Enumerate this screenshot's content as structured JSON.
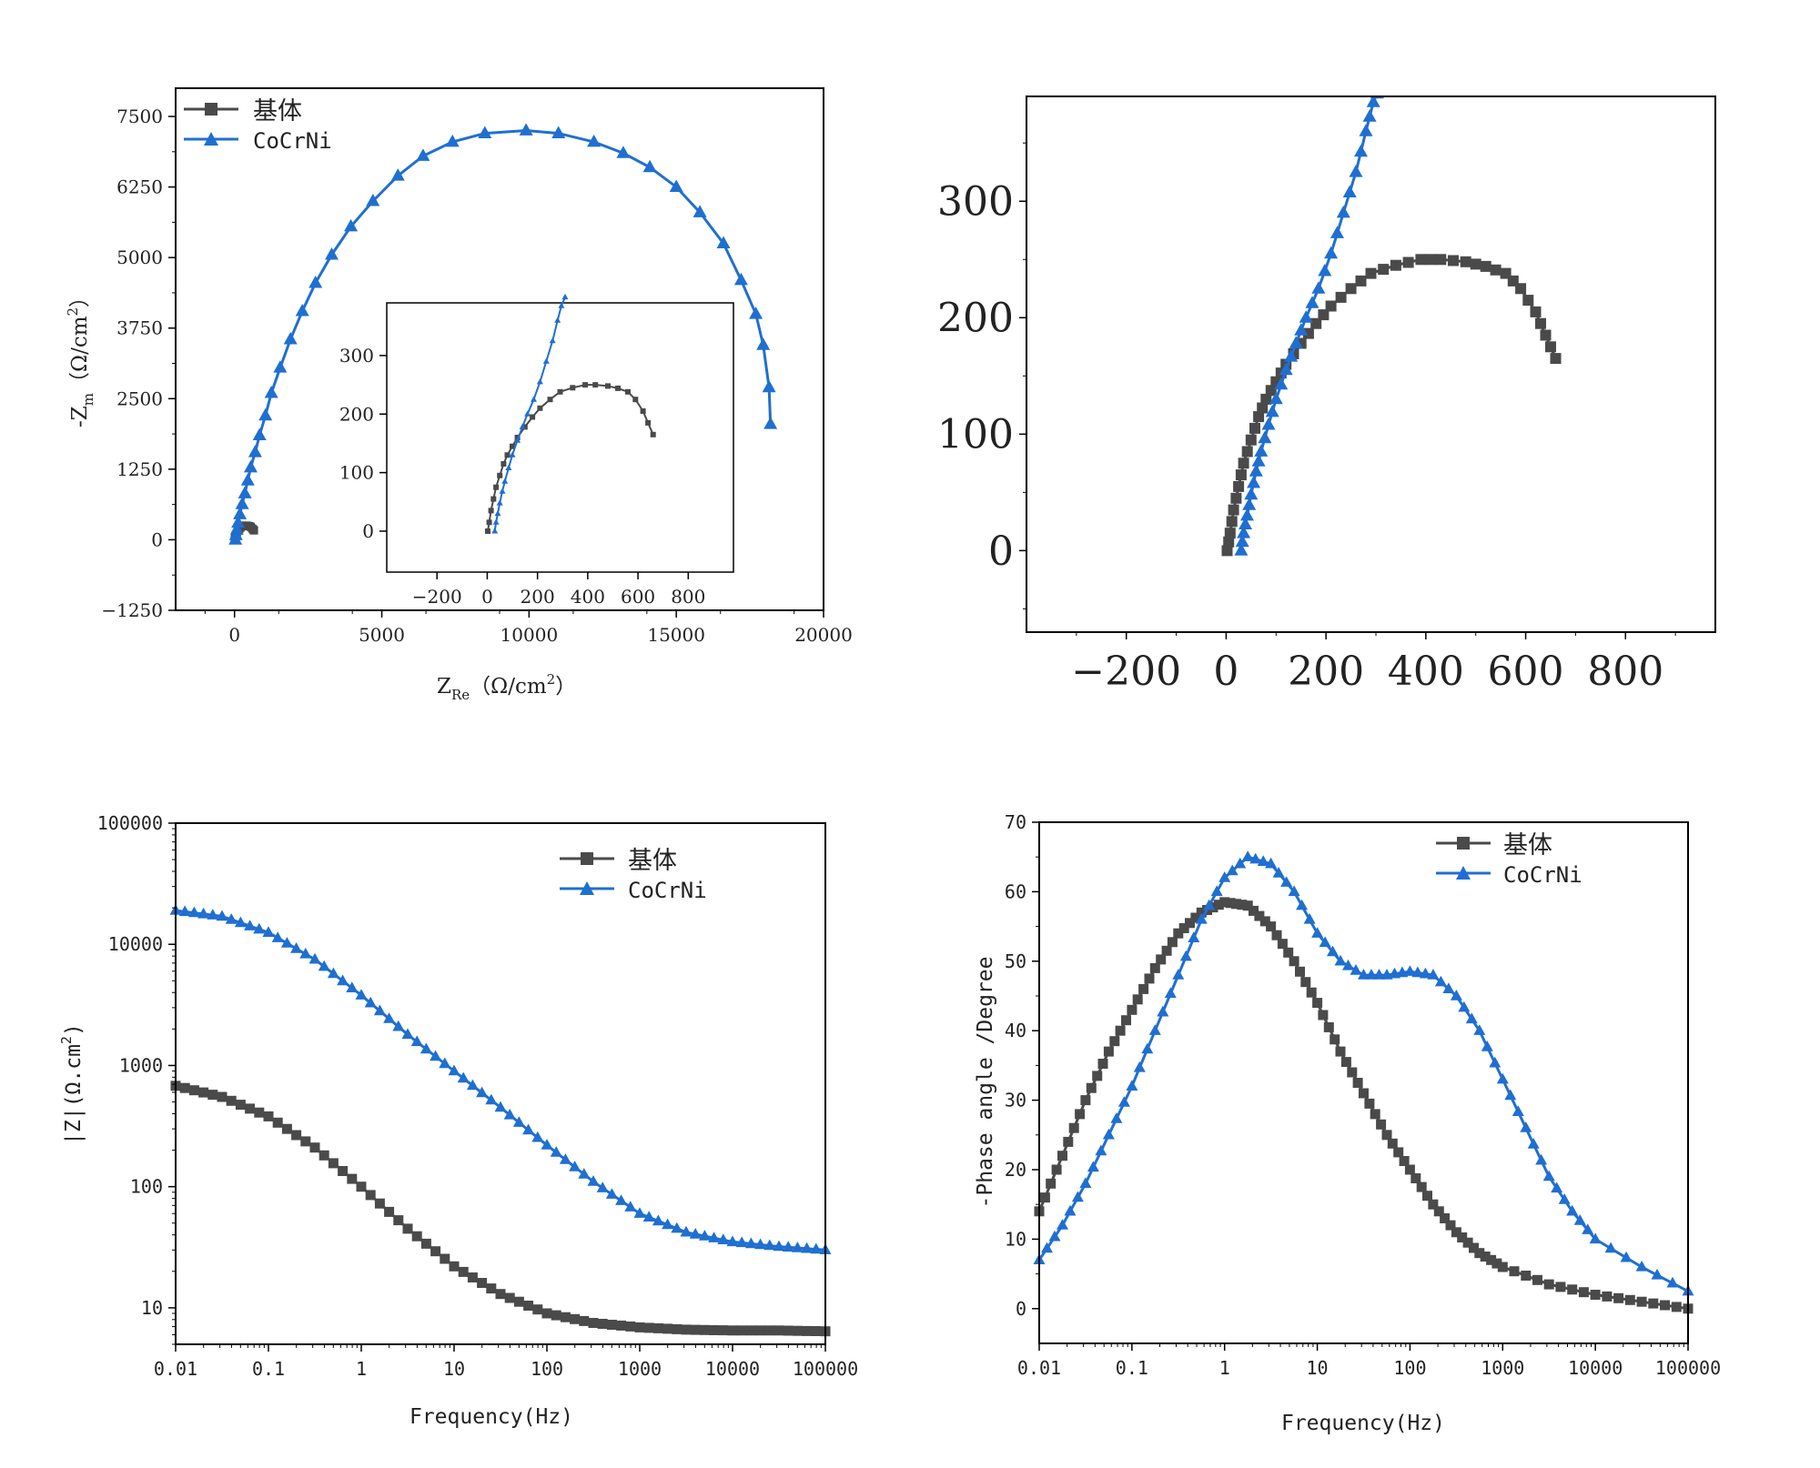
{
  "colors": {
    "base": "#4a4a4a",
    "cocrni": "#1f6fd1",
    "axis": "#000000"
  },
  "legend": {
    "base": "基体",
    "cocrni": "CoCrNi"
  },
  "chart_data": [
    {
      "id": "nyquist",
      "type": "line",
      "xlabel": "Z",
      "xlabel_sub": "Re",
      "xlabel_unit": "（Ω/cm",
      "xlabel_sup": "2",
      "xlabel_close": "）",
      "ylabel": "-Z",
      "ylabel_sub": "m",
      "ylabel_unit": "（Ω/cm",
      "ylabel_sup": "2",
      "ylabel_close": "）",
      "xlim": [
        -2000,
        20000
      ],
      "ylim": [
        -1250,
        8000
      ],
      "xticks": [
        0,
        5000,
        10000,
        15000,
        20000
      ],
      "xtick_labels": [
        "0",
        "5000",
        "10000",
        "15000",
        "20000"
      ],
      "yticks": [
        -1250,
        0,
        1250,
        2500,
        3750,
        5000,
        6250,
        7500
      ],
      "ytick_labels": [
        "−1250",
        "0",
        "1250",
        "2500",
        "3750",
        "5000",
        "6250",
        "7500"
      ],
      "legend_position": "top-left",
      "series": [
        {
          "name": "基体",
          "x": [
            5,
            15,
            30,
            50,
            80,
            120,
            160,
            200,
            250,
            300,
            350,
            400,
            450,
            500,
            550,
            600,
            640,
            660
          ],
          "y": [
            0,
            20,
            45,
            80,
            120,
            160,
            190,
            215,
            235,
            245,
            250,
            250,
            247,
            242,
            230,
            200,
            180,
            165
          ]
        },
        {
          "name": "CoCrNi",
          "x": [
            30,
            50,
            80,
            120,
            180,
            260,
            350,
            450,
            550,
            700,
            850,
            1050,
            1250,
            1550,
            1900,
            2300,
            2750,
            3300,
            3950,
            4700,
            5550,
            6400,
            7400,
            8500,
            9900,
            11000,
            12200,
            13200,
            14100,
            15000,
            15800,
            16600,
            17200,
            17700,
            17950,
            18150,
            18200
          ],
          "y": [
            0,
            80,
            180,
            300,
            450,
            630,
            820,
            1050,
            1280,
            1550,
            1850,
            2200,
            2600,
            3050,
            3550,
            4050,
            4550,
            5050,
            5550,
            6000,
            6450,
            6800,
            7050,
            7200,
            7250,
            7200,
            7050,
            6850,
            6600,
            6250,
            5800,
            5250,
            4600,
            4000,
            3450,
            2700,
            2050
          ]
        }
      ]
    },
    {
      "id": "nyquist-inset",
      "type": "line",
      "xlim": [
        -400,
        980
      ],
      "ylim": [
        -70,
        390
      ],
      "xticks": [
        -200,
        0,
        200,
        400,
        600,
        800
      ],
      "xtick_labels": [
        "−200",
        "0",
        "200",
        "400",
        "600",
        "800"
      ],
      "yticks": [
        0,
        100,
        200,
        300
      ],
      "ytick_labels": [
        "0",
        "100",
        "200",
        "300"
      ],
      "series": [
        {
          "name": "基体",
          "x": [
            2,
            8,
            15,
            25,
            35,
            50,
            65,
            80,
            100,
            120,
            150,
            180,
            210,
            250,
            290,
            340,
            390,
            430,
            480,
            520,
            560,
            590,
            620,
            640,
            660
          ],
          "y": [
            0,
            15,
            35,
            55,
            75,
            95,
            115,
            130,
            145,
            160,
            178,
            195,
            210,
            225,
            238,
            245,
            250,
            250,
            248,
            244,
            238,
            225,
            205,
            185,
            165
          ]
        },
        {
          "name": "CoCrNi",
          "x": [
            30,
            35,
            42,
            50,
            60,
            70,
            85,
            100,
            120,
            140,
            160,
            185,
            210,
            235,
            260,
            280,
            295,
            310
          ],
          "y": [
            0,
            15,
            30,
            48,
            68,
            85,
            108,
            130,
            155,
            178,
            200,
            225,
            255,
            290,
            325,
            360,
            385,
            400
          ]
        }
      ]
    },
    {
      "id": "bode-mod",
      "type": "line",
      "xlabel": "Frequency(Hz)",
      "ylabel": "|Z|(Ω.cm",
      "ylabel_sup": "2",
      "ylabel_close": ")",
      "xscale": "log",
      "yscale": "log",
      "xlim": [
        0.01,
        100000
      ],
      "ylim": [
        5,
        100000
      ],
      "xticks": [
        0.01,
        0.1,
        1,
        10,
        100,
        1000,
        10000,
        100000
      ],
      "xtick_labels": [
        "0.01",
        "0.1",
        "1",
        "10",
        "100",
        "1000",
        "10000",
        "100000"
      ],
      "yticks": [
        10,
        100,
        1000,
        10000,
        100000
      ],
      "ytick_labels": [
        "10",
        "100",
        "1000",
        "10000",
        "100000"
      ],
      "legend_position": "top-right",
      "series": [
        {
          "name": "基体",
          "logf": [
            -2,
            -1.5,
            -1,
            -0.5,
            0,
            0.5,
            1,
            1.5,
            2,
            2.5,
            3,
            3.5,
            4,
            4.5,
            5
          ],
          "values": [
            680,
            550,
            380,
            210,
            100,
            45,
            22,
            13,
            9,
            7.5,
            6.9,
            6.6,
            6.5,
            6.5,
            6.4
          ]
        },
        {
          "name": "CoCrNi",
          "logf": [
            -2,
            -1.5,
            -1,
            -0.5,
            0,
            0.5,
            1,
            1.5,
            2,
            2.5,
            3,
            3.5,
            4,
            4.5,
            5
          ],
          "values": [
            19000,
            17000,
            12500,
            7500,
            3800,
            1800,
            900,
            450,
            220,
            110,
            60,
            42,
            35,
            32,
            30
          ]
        }
      ]
    },
    {
      "id": "bode-phase",
      "type": "line",
      "xlabel": "Frequency(Hz)",
      "ylabel": "-Phase angle /Degree",
      "xscale": "log",
      "xlim": [
        0.01,
        100000
      ],
      "ylim": [
        -5,
        70
      ],
      "xticks": [
        0.01,
        0.1,
        1,
        10,
        100,
        1000,
        10000,
        100000
      ],
      "xtick_labels": [
        "0.01",
        "0.1",
        "1",
        "10",
        "100",
        "1000",
        "10000",
        "100000"
      ],
      "yticks": [
        0,
        10,
        20,
        30,
        40,
        50,
        60,
        70
      ],
      "ytick_labels": [
        "0",
        "10",
        "20",
        "30",
        "40",
        "50",
        "60",
        "70"
      ],
      "legend_position": "top-right",
      "series": [
        {
          "name": "基体",
          "logf": [
            -2,
            -1.75,
            -1.5,
            -1.25,
            -1,
            -0.75,
            -0.5,
            -0.25,
            0,
            0.25,
            0.5,
            0.75,
            1,
            1.25,
            1.5,
            1.75,
            2,
            2.25,
            2.5,
            2.75,
            3,
            3.5,
            4,
            4.5,
            5
          ],
          "values": [
            14,
            22,
            30,
            37,
            43,
            49,
            54,
            57,
            58.5,
            58,
            55,
            50,
            44,
            37,
            31,
            25,
            20,
            15,
            11,
            8,
            6,
            3.5,
            2,
            1,
            0
          ]
        },
        {
          "name": "CoCrNi",
          "logf": [
            -2,
            -1.75,
            -1.5,
            -1.25,
            -1,
            -0.75,
            -0.5,
            -0.25,
            0,
            0.25,
            0.5,
            0.75,
            1,
            1.25,
            1.5,
            1.75,
            2,
            2.25,
            2.5,
            2.75,
            3,
            3.25,
            3.5,
            3.75,
            4,
            4.5,
            5
          ],
          "values": [
            7,
            12,
            18,
            25,
            32,
            40,
            48,
            56,
            62,
            65,
            64,
            60,
            54,
            50,
            48,
            48,
            48.5,
            48,
            45,
            40,
            33,
            26,
            19,
            14,
            10,
            6,
            2.5
          ]
        }
      ]
    },
    {
      "id": "nyquist-zoom",
      "type": "line",
      "xlim": [
        -400,
        980
      ],
      "ylim": [
        -70,
        390
      ],
      "xticks": [
        -200,
        0,
        200,
        400,
        600,
        800
      ],
      "xtick_labels": [
        "−200",
        "0",
        "200",
        "400",
        "600",
        "800"
      ],
      "yticks": [
        0,
        100,
        200,
        300
      ],
      "ytick_labels": [
        "0",
        "100",
        "200",
        "300"
      ],
      "series": [
        {
          "name": "基体",
          "x": [
            2,
            8,
            15,
            25,
            35,
            50,
            65,
            80,
            100,
            120,
            150,
            180,
            210,
            250,
            290,
            340,
            390,
            430,
            480,
            520,
            560,
            590,
            620,
            640,
            660
          ],
          "y": [
            0,
            15,
            35,
            55,
            75,
            95,
            115,
            130,
            145,
            160,
            178,
            195,
            210,
            225,
            238,
            245,
            250,
            250,
            248,
            244,
            238,
            225,
            205,
            185,
            165
          ]
        },
        {
          "name": "CoCrNi",
          "x": [
            30,
            35,
            42,
            50,
            60,
            70,
            85,
            100,
            120,
            140,
            160,
            185,
            210,
            235,
            260,
            280,
            295,
            310
          ],
          "y": [
            0,
            15,
            30,
            48,
            68,
            85,
            108,
            130,
            155,
            178,
            200,
            225,
            255,
            290,
            325,
            360,
            385,
            400
          ]
        }
      ]
    }
  ]
}
